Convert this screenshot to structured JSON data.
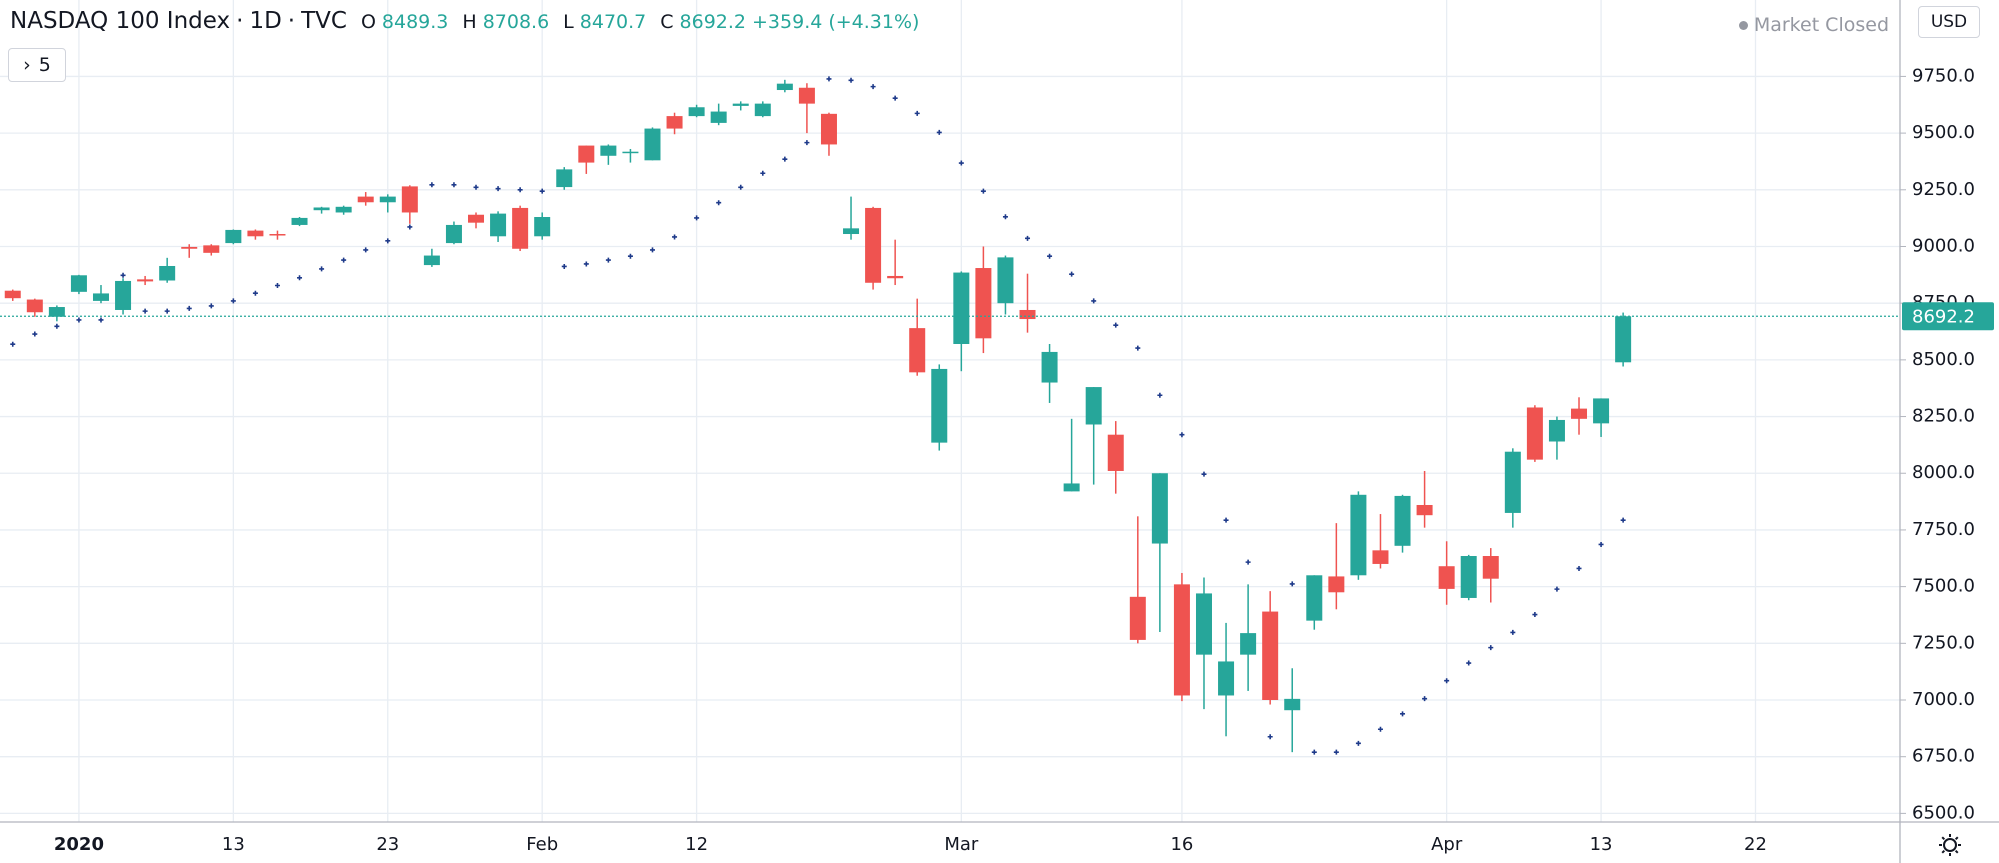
{
  "chart_data": {
    "type": "candlestick",
    "title": "NASDAQ 100 Index",
    "interval": "1D",
    "source": "TVC",
    "ohlc_labels": [
      "O",
      "H",
      "L",
      "C"
    ],
    "change": {
      "value": 359.4,
      "label": "+359.4"
    },
    "change_percent": {
      "value": 4.31,
      "label": "(+4.31%)"
    },
    "status": "Market Closed",
    "currency": "USD",
    "indicator_count": 5,
    "up_color": "#26a69a",
    "down_color": "#ef5350",
    "categories": [
      null,
      null,
      null,
      "2020",
      null,
      null,
      null,
      null,
      null,
      null,
      "13",
      null,
      null,
      null,
      null,
      null,
      null,
      "23",
      null,
      null,
      null,
      null,
      null,
      null,
      "Feb",
      null,
      null,
      null,
      null,
      null,
      null,
      "12",
      null,
      null,
      null,
      null,
      null,
      null,
      null,
      null,
      null,
      null,
      null,
      "Mar",
      null,
      null,
      null,
      null,
      null,
      null,
      null,
      null,
      null,
      "16",
      null,
      null,
      null,
      null,
      null,
      null,
      null,
      null,
      null,
      null,
      null,
      "Apr",
      null,
      null,
      null,
      null,
      null,
      null,
      "13",
      null,
      null,
      null,
      null,
      null,
      null,
      "22"
    ],
    "open": [
      8805,
      8766,
      8690,
      8800,
      8760,
      8720,
      8855,
      8850,
      8998,
      9005,
      9015,
      9070,
      9055,
      9095,
      9160,
      9150,
      9220,
      9195,
      9265,
      8918,
      9015,
      9140,
      9045,
      9170,
      9045,
      9262,
      9445,
      9400,
      9412,
      9380,
      9575,
      9575,
      9545,
      9620,
      9575,
      9690,
      9700,
      9585,
      9055,
      9170,
      8870,
      8640,
      8135,
      8570,
      8905,
      8750,
      8720,
      8400,
      7920,
      8215,
      8170,
      7455,
      7690,
      7510,
      7200,
      7020,
      7200,
      7390,
      6955,
      7350,
      7545,
      7550,
      7660,
      7680,
      7860,
      7590,
      7450,
      7635,
      7825,
      8290,
      8140,
      8285,
      8220,
      8489.3,
      null,
      null,
      null,
      null,
      null,
      null
    ],
    "high": [
      8810,
      8770,
      8740,
      8875,
      8830,
      8860,
      8870,
      8950,
      9010,
      9010,
      9075,
      9075,
      9070,
      9130,
      9175,
      9180,
      9240,
      9230,
      9270,
      8990,
      9110,
      9150,
      9155,
      9180,
      9150,
      9350,
      9445,
      9450,
      9430,
      9525,
      9590,
      9625,
      9630,
      9640,
      9640,
      9735,
      9720,
      9590,
      9220,
      9175,
      9030,
      8770,
      8480,
      8890,
      9000,
      8960,
      8880,
      8570,
      8240,
      8380,
      8230,
      7810,
      8000,
      7560,
      7540,
      7340,
      7510,
      7480,
      7140,
      7550,
      7780,
      7920,
      7820,
      7905,
      8010,
      7700,
      7640,
      7670,
      8110,
      8300,
      8250,
      8335,
      8330,
      8708.6,
      null,
      null,
      null,
      null,
      null,
      null
    ],
    "low": [
      8760,
      8690,
      8670,
      8790,
      8750,
      8700,
      8830,
      8840,
      8950,
      8960,
      9010,
      9030,
      9030,
      9090,
      9145,
      9140,
      9180,
      9150,
      9100,
      8910,
      9010,
      9080,
      9020,
      8980,
      9030,
      9250,
      9320,
      9360,
      9370,
      9380,
      9495,
      9570,
      9535,
      9600,
      9570,
      9680,
      9500,
      9400,
      9030,
      8810,
      8830,
      8430,
      8100,
      8450,
      8530,
      8700,
      8620,
      8310,
      7920,
      7950,
      7910,
      7250,
      7300,
      6995,
      6960,
      6840,
      7040,
      6980,
      6770,
      7310,
      7400,
      7530,
      7580,
      7650,
      7760,
      7420,
      7440,
      7430,
      7760,
      8050,
      8060,
      8170,
      8160,
      8470.7,
      null,
      null,
      null,
      null,
      null,
      null
    ],
    "close": [
      8772,
      8710,
      8733,
      8873,
      8793,
      8848,
      8846,
      8914,
      8990,
      8972,
      9073,
      9045,
      9050,
      9126,
      9172,
      9175,
      9195,
      9220,
      9150,
      8960,
      9095,
      9105,
      9145,
      8990,
      9130,
      9340,
      9370,
      9445,
      9418,
      9520,
      9520,
      9614,
      9595,
      9630,
      9630,
      9718,
      9630,
      9450,
      9080,
      8840,
      8860,
      8445,
      8460,
      8885,
      8595,
      8952,
      8680,
      8535,
      7955,
      8380,
      8010,
      7265,
      8000,
      7020,
      7470,
      7170,
      7295,
      7000,
      7005,
      7550,
      7475,
      7905,
      7600,
      7900,
      7815,
      7490,
      7635,
      7535,
      8095,
      8060,
      8235,
      8240,
      8330,
      8692.2,
      null,
      null,
      null,
      null,
      null,
      null
    ],
    "sar": {
      "color": "#1e3a8a",
      "values": [
        8569,
        8614,
        8648,
        8676,
        8676,
        8873,
        8715,
        8715,
        8727,
        8738,
        8760,
        8794,
        8828,
        8862,
        8901,
        8940,
        8985,
        9025,
        9086,
        9272,
        9272,
        9261,
        9255,
        9250,
        9244,
        8912,
        8923,
        8940,
        8957,
        8985,
        9042,
        9126,
        9193,
        9261,
        9323,
        9385,
        9458,
        9739,
        9733,
        9705,
        9654,
        9587,
        9503,
        9368,
        9244,
        9131,
        9036,
        8957,
        8878,
        8760,
        8653,
        8552,
        8344,
        8170,
        7996,
        7793,
        7608,
        6838,
        7512,
        6770,
        6770,
        6809,
        6871,
        6939,
        7006,
        7085,
        7163,
        7231,
        7298,
        7377,
        7489,
        7580,
        7686,
        7793,
        null,
        null,
        null,
        null,
        null,
        null
      ]
    },
    "ylim": [
      6462,
      10087
    ],
    "yticks": [
      {
        "value": 6500,
        "label": "6500.0"
      },
      {
        "value": 6750,
        "label": "6750.0"
      },
      {
        "value": 7000,
        "label": "7000.0"
      },
      {
        "value": 7250,
        "label": "7250.0"
      },
      {
        "value": 7500,
        "label": "7500.0"
      },
      {
        "value": 7750,
        "label": "7750.0"
      },
      {
        "value": 8000,
        "label": "8000.0"
      },
      {
        "value": 8250,
        "label": "8250.0"
      },
      {
        "value": 8500,
        "label": "8500.0"
      },
      {
        "value": 8750,
        "label": "8750.0"
      },
      {
        "value": 9000,
        "label": "9000.0"
      },
      {
        "value": 9250,
        "label": "9250.0"
      },
      {
        "value": 9500,
        "label": "9500.0"
      },
      {
        "value": 9750,
        "label": "9750.0"
      }
    ],
    "grid": true
  }
}
